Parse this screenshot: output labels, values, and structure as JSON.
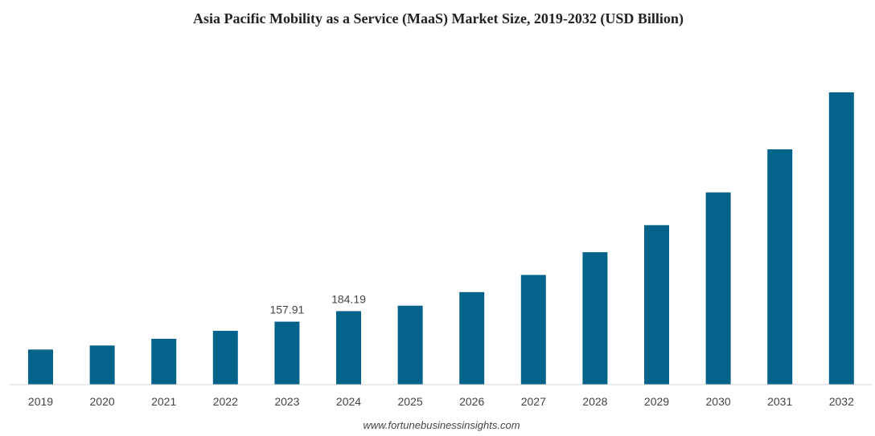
{
  "chart_data": {
    "type": "bar",
    "title": "Asia Pacific Mobility as a Service (MaaS) Market Size, 2019-2032 (USD Billion)",
    "xlabel": "",
    "ylabel": "",
    "categories": [
      "2019",
      "2020",
      "2021",
      "2022",
      "2023",
      "2024",
      "2025",
      "2026",
      "2027",
      "2028",
      "2029",
      "2030",
      "2031",
      "2032"
    ],
    "values": [
      88,
      98,
      115,
      135,
      157.91,
      184.19,
      198,
      232,
      275,
      332,
      400,
      482,
      590,
      733
    ],
    "data_labels": [
      {
        "category": "2023",
        "text": "157.91"
      },
      {
        "category": "2024",
        "text": "184.19"
      }
    ],
    "ylim": [
      0,
      733
    ],
    "grid": false,
    "bar_color": "#04638a"
  },
  "source": "www.fortunebusinessinsights.com"
}
